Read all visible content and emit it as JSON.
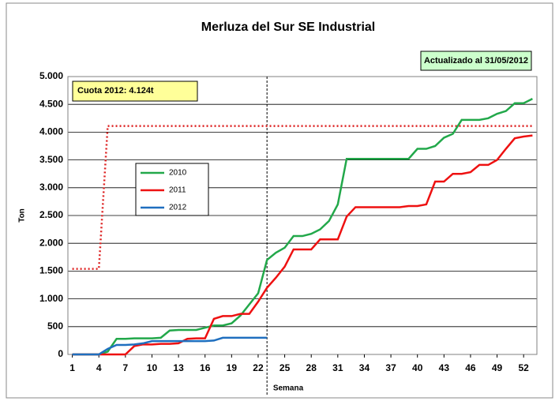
{
  "chart_data": {
    "type": "line",
    "title": "Merluza del Sur SE Industrial",
    "x_label": "Semana",
    "y_label": "Ton",
    "annotations": [
      "Cuota 2012: 4.124t",
      "Actualizado al 31/05/2012"
    ],
    "x": [
      1,
      2,
      3,
      4,
      5,
      6,
      7,
      8,
      9,
      10,
      11,
      12,
      13,
      14,
      15,
      16,
      17,
      18,
      19,
      20,
      21,
      22,
      23,
      24,
      25,
      26,
      27,
      28,
      29,
      30,
      31,
      32,
      33,
      34,
      35,
      36,
      37,
      38,
      39,
      40,
      41,
      42,
      43,
      44,
      45,
      46,
      47,
      48,
      49,
      50,
      51,
      52,
      53
    ],
    "xlim": [
      0.5,
      53.5
    ],
    "xticks": [
      1,
      4,
      7,
      10,
      13,
      16,
      19,
      22,
      25,
      28,
      31,
      34,
      37,
      40,
      43,
      46,
      49,
      52
    ],
    "ylim": [
      0,
      5000
    ],
    "yticks": [
      0,
      500,
      {
        "value": 1000,
        "label": "1.000"
      },
      {
        "value": 1500,
        "label": "1.500"
      },
      {
        "value": 2000,
        "label": "2.000"
      },
      {
        "value": 2500,
        "label": "2.500"
      },
      {
        "value": 3000,
        "label": "3.000"
      },
      {
        "value": 3500,
        "label": "3.500"
      },
      {
        "value": 4000,
        "label": "4.000"
      },
      {
        "value": 4500,
        "label": "4.500"
      },
      {
        "value": 5000,
        "label": "5.000"
      }
    ],
    "grid": true,
    "series": [
      {
        "name": "2010",
        "color": "#22a84a",
        "values": [
          0,
          0,
          0,
          0,
          50,
          280,
          280,
          290,
          290,
          290,
          300,
          430,
          440,
          440,
          440,
          480,
          520,
          520,
          560,
          700,
          900,
          1100,
          1700,
          1830,
          1920,
          2130,
          2130,
          2170,
          2250,
          2400,
          2700,
          3520,
          3520,
          3520,
          3520,
          3520,
          3520,
          3520,
          3520,
          3700,
          3700,
          3750,
          3900,
          3970,
          4220,
          4220,
          4220,
          4250,
          4330,
          4380,
          4520,
          4520,
          4600
        ]
      },
      {
        "name": "2011",
        "color": "#ee1111",
        "values": [
          0,
          0,
          0,
          0,
          0,
          0,
          0,
          150,
          180,
          180,
          190,
          190,
          200,
          280,
          290,
          290,
          640,
          690,
          690,
          730,
          730,
          950,
          1200,
          1380,
          1580,
          1890,
          1890,
          1890,
          2070,
          2070,
          2070,
          2480,
          2650,
          2650,
          2650,
          2650,
          2650,
          2650,
          2670,
          2670,
          2700,
          3110,
          3110,
          3250,
          3250,
          3280,
          3410,
          3410,
          3500,
          3700,
          3890,
          3920,
          3940
        ]
      },
      {
        "name": "2012",
        "color": "#1f6fbf",
        "values": [
          0,
          0,
          0,
          0,
          100,
          170,
          170,
          180,
          200,
          240,
          240,
          240,
          240,
          240,
          240,
          240,
          250,
          300,
          300,
          300,
          300,
          300,
          300,
          null,
          null,
          null,
          null,
          null,
          null,
          null,
          null,
          null,
          null,
          null,
          null,
          null,
          null,
          null,
          null,
          null,
          null,
          null,
          null,
          null,
          null,
          null,
          null,
          null,
          null,
          null,
          null,
          null,
          null
        ]
      }
    ],
    "quota_line": {
      "color": "#dd2222",
      "values": [
        1540,
        1540,
        1540,
        1540,
        4110,
        4110,
        4110,
        4110,
        4110,
        4110,
        4110,
        4110,
        4110,
        4110,
        4110,
        4110,
        4110,
        4110,
        4110,
        4110,
        4110,
        4110,
        4110,
        4110,
        4110,
        4110,
        4110,
        4110,
        4110,
        4110,
        4110,
        4110,
        4110,
        4110,
        4110,
        4110,
        4110,
        4110,
        4110,
        4110,
        4110,
        4110,
        4110,
        4110,
        4110,
        4110,
        4110,
        4110,
        4110,
        4110,
        4110,
        4110,
        4110
      ]
    },
    "vline_x": 23
  }
}
